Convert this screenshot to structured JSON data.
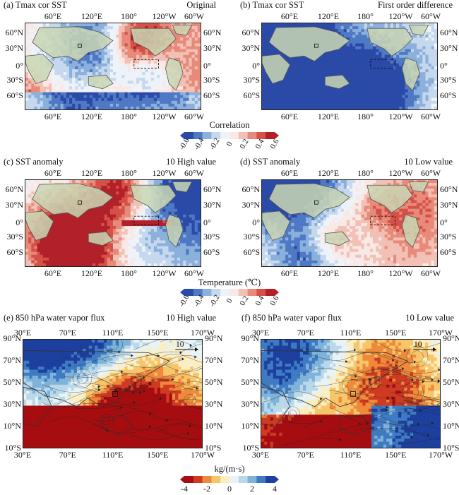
{
  "figure": {
    "cbar1": {
      "title": "Correlation",
      "ticks": [
        "-0.6",
        "-0.4",
        "-0.2",
        "0",
        "0.2",
        "0.4",
        "0.6"
      ],
      "colors": [
        "#2b4aa8",
        "#4f79c4",
        "#8bb0dc",
        "#c5d8ee",
        "#eef3f9",
        "#f9e9e6",
        "#f2c0b4",
        "#e88a7a",
        "#d55148",
        "#b2202a"
      ]
    },
    "cbar2": {
      "title": "Temperature (℃)",
      "ticks": [
        "-0.6",
        "-0.4",
        "-0.2",
        "0",
        "0.2",
        "0.4",
        "0.6"
      ],
      "colors": [
        "#2b4aa8",
        "#4f79c4",
        "#8bb0dc",
        "#c5d8ee",
        "#eef3f9",
        "#f9e9e6",
        "#f2c0b4",
        "#e88a7a",
        "#d55148",
        "#b2202a"
      ]
    },
    "cbar3": {
      "title": "kg/(m·s)",
      "ticks": [
        "-4",
        "-2",
        "0",
        "2",
        "4"
      ],
      "colors": [
        "#a50d10",
        "#cf3b22",
        "#ef8a3a",
        "#f7c56a",
        "#fbeec0",
        "#e9f2f4",
        "#b9d9ea",
        "#7fb3d9",
        "#3f7bc3",
        "#1d3f9e"
      ]
    }
  },
  "chart_data": [
    {
      "id": "a",
      "type": "heatmap",
      "title": "(a) Tmax cor SST",
      "subtitle": "Original",
      "x_ticks": [
        "60°E",
        "120°E",
        "180°",
        "120°W",
        "60°W"
      ],
      "y_ticks": [
        "60°N",
        "30°N",
        "0°",
        "30°S",
        "60°S"
      ],
      "y_ticks_right": [
        "60°N",
        "30°N",
        "0°",
        "30°S",
        "60°S"
      ],
      "value_range": [
        -0.6,
        0.6
      ],
      "colorbar_title": "Correlation"
    },
    {
      "id": "b",
      "type": "heatmap",
      "title": "(b) Tmax cor SST",
      "subtitle": "First order difference",
      "x_ticks": [
        "60°E",
        "120°E",
        "180°",
        "120°W",
        "60°W"
      ],
      "y_ticks": [
        "60°N",
        "30°N",
        "0°",
        "30°S",
        "60°S"
      ],
      "y_ticks_right": [
        "60°N",
        "30°N",
        "0°",
        "30°S",
        "60°S"
      ],
      "value_range": [
        -0.6,
        0.6
      ],
      "colorbar_title": "Correlation"
    },
    {
      "id": "c",
      "type": "heatmap",
      "title": "(c) SST anomaly",
      "subtitle": "10 High value",
      "x_ticks": [
        "60°E",
        "120°E",
        "180°",
        "120°W",
        "60°W"
      ],
      "y_ticks": [
        "60°N",
        "30°N",
        "0°",
        "30°S",
        "60°S"
      ],
      "y_ticks_right": [
        "60°N",
        "30°N",
        "0°",
        "30°S",
        "60°S"
      ],
      "value_range": [
        -0.6,
        0.6
      ],
      "colorbar_title": "Temperature (℃)"
    },
    {
      "id": "d",
      "type": "heatmap",
      "title": "(d) SST anomaly",
      "subtitle": "10 Low value",
      "x_ticks": [
        "60°E",
        "120°E",
        "180°",
        "120°W",
        "60°W"
      ],
      "y_ticks": [
        "60°N",
        "30°N",
        "0°",
        "30°S",
        "60°S"
      ],
      "y_ticks_right": [
        "60°N",
        "30°N",
        "0°",
        "30°S",
        "60°S"
      ],
      "value_range": [
        -0.6,
        0.6
      ],
      "colorbar_title": "Temperature (℃)"
    },
    {
      "id": "e",
      "type": "heatmap",
      "title": "(e) 850 hPa water vapor flux",
      "subtitle": "10 High value",
      "x_ticks": [
        "30°E",
        "70°E",
        "110°E",
        "150°E",
        "170°W"
      ],
      "y_ticks": [
        "90°N",
        "70°N",
        "50°N",
        "30°N",
        "10°N",
        "10°S"
      ],
      "y_ticks_right": [
        "90°N",
        "70°N",
        "50°N",
        "30°N",
        "10°N",
        "10°S"
      ],
      "vector_reference": "10",
      "value_range": [
        -4,
        4
      ],
      "colorbar_title": "kg/(m·s)"
    },
    {
      "id": "f",
      "type": "heatmap",
      "title": "(f) 850 hPa water vapor flux",
      "subtitle": "10 Low value",
      "x_ticks": [
        "30°E",
        "70°E",
        "110°E",
        "150°E",
        "170°W"
      ],
      "y_ticks": [
        "90°N",
        "70°N",
        "50°N",
        "30°N",
        "10°N",
        "10°S"
      ],
      "y_ticks_right": [
        "90°N",
        "70°N",
        "50°N",
        "30°N",
        "10°N",
        "10°S"
      ],
      "vector_reference": "10",
      "value_range": [
        -4,
        4
      ],
      "colorbar_title": "kg/(m·s)"
    }
  ]
}
